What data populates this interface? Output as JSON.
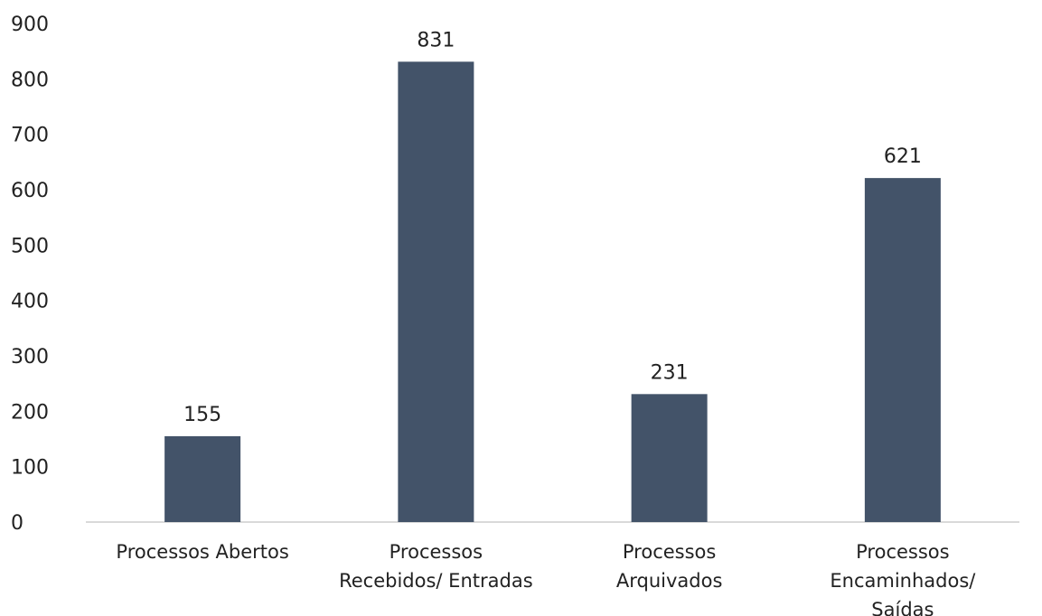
{
  "chart_data": {
    "type": "bar",
    "title": "",
    "xlabel": "",
    "ylabel": "",
    "ylim": [
      0,
      900
    ],
    "ytick_step": 100,
    "grid": false,
    "legend": "none",
    "bar_color": "#435369",
    "axis_color": "#d9d9d9",
    "categories": [
      [
        "Processos Abertos"
      ],
      [
        "Processos",
        "Recebidos/ Entradas"
      ],
      [
        "Processos",
        "Arquivados"
      ],
      [
        "Processos",
        "Encaminhados/",
        "Saídas"
      ]
    ],
    "values": [
      155,
      831,
      231,
      621
    ],
    "data_labels": [
      "155",
      "831",
      "231",
      "621"
    ]
  }
}
